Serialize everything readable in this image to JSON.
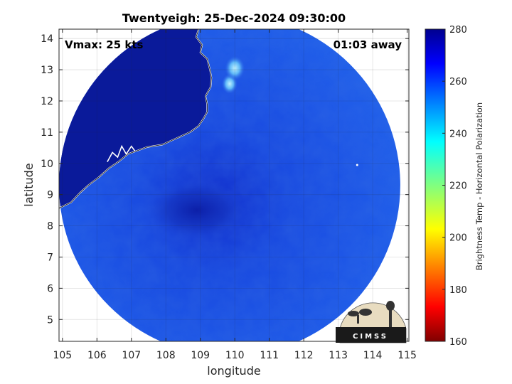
{
  "chart_data": {
    "type": "heatmap",
    "title": "Twentyeigh: 25-Dec-2024 09:30:00",
    "xlabel": "longitude",
    "ylabel": "latitude",
    "xlim": [
      104.9,
      115.05
    ],
    "ylim": [
      4.3,
      14.3
    ],
    "xticks": [
      "105",
      "106",
      "107",
      "108",
      "109",
      "110",
      "111",
      "112",
      "113",
      "114",
      "115"
    ],
    "yticks": [
      "5",
      "6",
      "7",
      "8",
      "9",
      "10",
      "11",
      "12",
      "13",
      "14"
    ],
    "grid": true,
    "annotations": {
      "intensity": "Vmax: 25 kts",
      "time_offset": "01:03 away"
    },
    "colorbar": {
      "label": "Brightness Temp - Horizontal Polarization",
      "range": [
        160,
        280
      ],
      "ticks": [
        "160",
        "180",
        "200",
        "220",
        "240",
        "260",
        "280"
      ],
      "colormap": "jet"
    },
    "swath": {
      "center_lon": 109.85,
      "center_lat": 9.3,
      "radius_deg": 4.95
    },
    "features": [
      {
        "type": "land",
        "value_approx": 280
      },
      {
        "type": "ocean-background",
        "value_approx": 262
      },
      {
        "type": "low-centre",
        "lon": 108.9,
        "lat": 8.5,
        "value_approx": 268
      },
      {
        "type": "warm-spot",
        "lon": 109.85,
        "lat": 12.55,
        "value_approx": 235
      },
      {
        "type": "warm-spot",
        "lon": 110.0,
        "lat": 13.05,
        "value_approx": 238
      }
    ],
    "logo": "CIMSS"
  }
}
